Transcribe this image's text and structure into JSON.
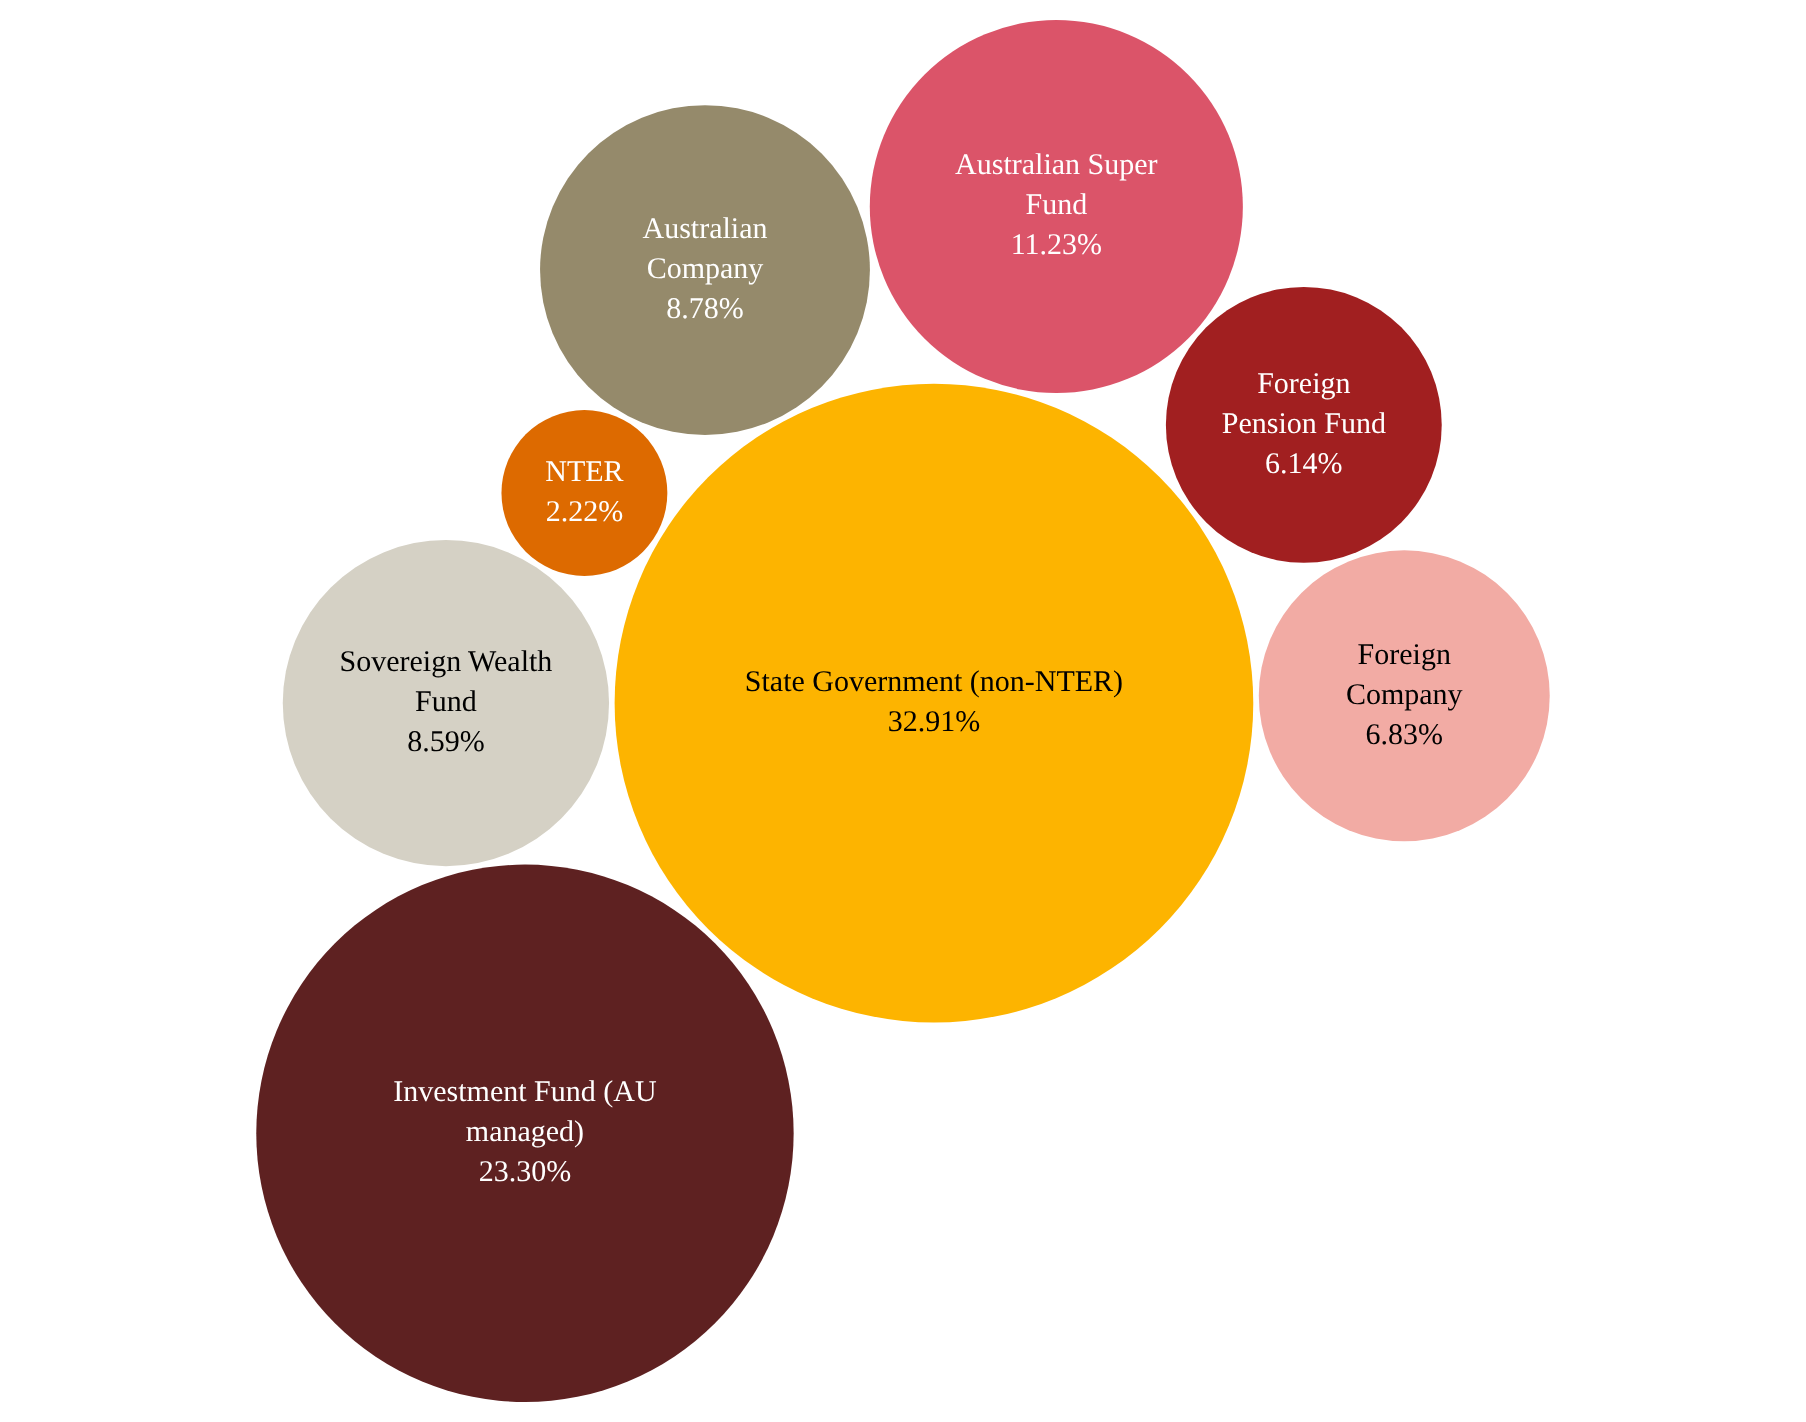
{
  "chart_data": {
    "type": "other",
    "categories": [
      "State Government (non-NTER)",
      "Sovereign Wealth Fund",
      "NTER",
      "Investment Fund (AU managed)",
      "Australian Company",
      "Australian Super Fund",
      "Foreign Pension Fund",
      "Foreign Company"
    ],
    "values": [
      32.91,
      8.59,
      2.22,
      23.3,
      8.78,
      11.23,
      6.14,
      6.83
    ],
    "colors": [
      "#fdb400",
      "#d5d1c5",
      "#dd6a00",
      "#5e2121",
      "#958a6b",
      "#db5469",
      "#a11f20",
      "#f2aba4"
    ],
    "value_labels": [
      "32.91%",
      "8.59%",
      "2.22%",
      "23.30%",
      "8.78%",
      "11.23%",
      "6.14%",
      "6.83%"
    ]
  }
}
